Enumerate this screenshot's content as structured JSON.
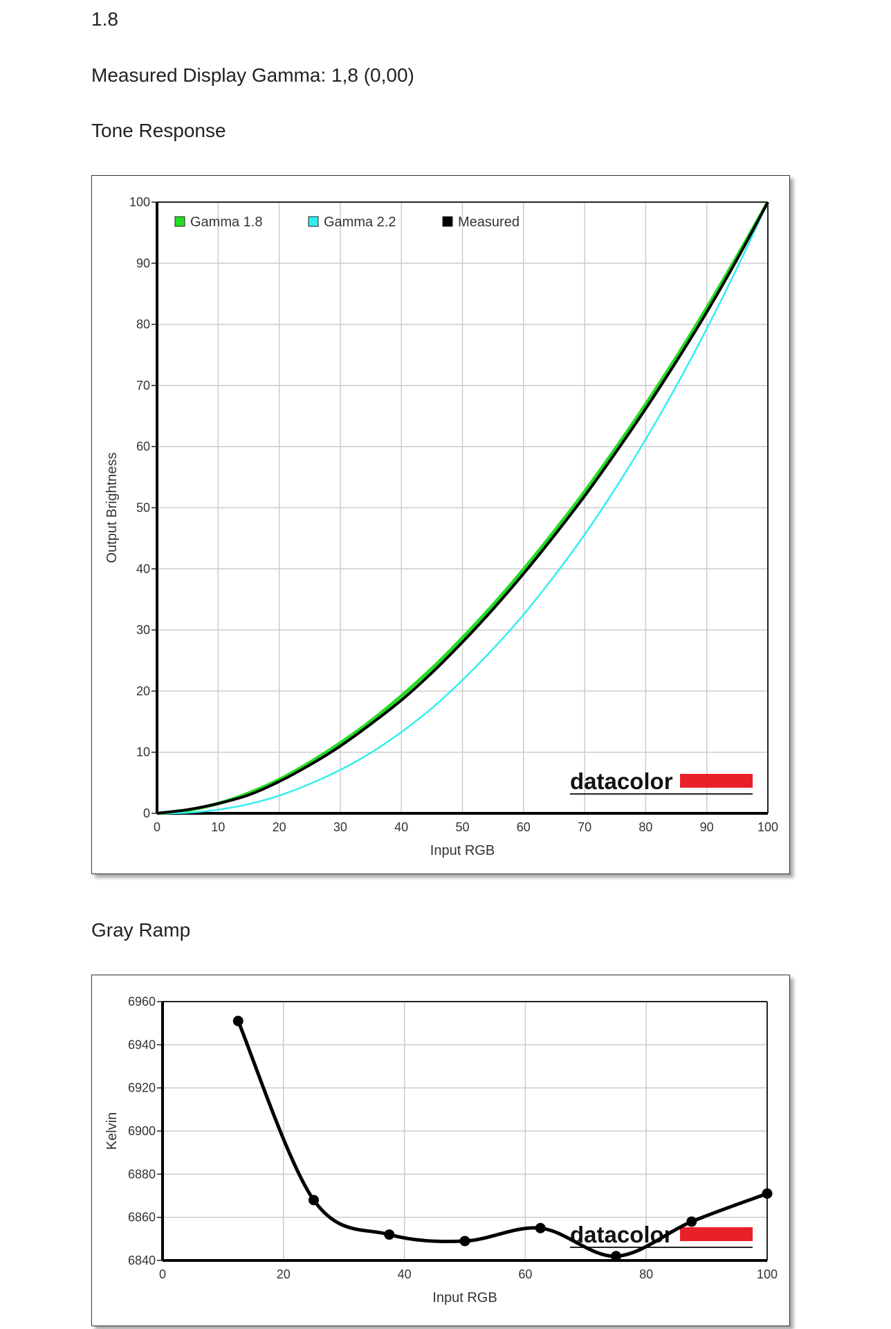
{
  "header": {
    "gamma_target": "1.8",
    "measured_gamma": "Measured Display Gamma: 1,8 (0,00)",
    "tone_heading": "Tone Response",
    "gray_heading": "Gray Ramp"
  },
  "logo_text": "datacolor",
  "colors": {
    "gamma18": "#22dd22",
    "gamma22": "#33eeee",
    "measured": "#000000",
    "logo_red": "#e8202a"
  },
  "chart_data": [
    {
      "type": "line",
      "xlabel": "Input RGB",
      "ylabel": "Output Brightness",
      "xlim": [
        0,
        100
      ],
      "ylim": [
        0,
        100
      ],
      "xticks": [
        0,
        10,
        20,
        30,
        40,
        50,
        60,
        70,
        80,
        90,
        100
      ],
      "yticks": [
        0,
        10,
        20,
        30,
        40,
        50,
        60,
        70,
        80,
        90,
        100
      ],
      "grid": true,
      "legend": "top-left",
      "series": [
        {
          "name": "Gamma 1.8",
          "color": "#22dd22",
          "x": [
            0,
            5,
            10,
            15,
            20,
            25,
            30,
            35,
            40,
            45,
            50,
            55,
            60,
            65,
            70,
            75,
            80,
            85,
            90,
            95,
            100
          ],
          "y": [
            0,
            0.5,
            1.6,
            3.3,
            5.5,
            8.3,
            11.5,
            15.1,
            19.2,
            23.7,
            28.7,
            34.1,
            39.9,
            46.1,
            52.6,
            59.6,
            66.9,
            74.6,
            82.7,
            91.2,
            100
          ]
        },
        {
          "name": "Gamma 2.2",
          "color": "#33eeee",
          "x": [
            0,
            5,
            10,
            15,
            20,
            25,
            30,
            35,
            40,
            45,
            50,
            55,
            60,
            65,
            70,
            75,
            80,
            85,
            90,
            95,
            100
          ],
          "y": [
            0,
            0.1,
            0.6,
            1.5,
            2.9,
            4.8,
            7.1,
            9.9,
            13.3,
            17.2,
            21.8,
            26.9,
            32.5,
            38.8,
            45.6,
            53.1,
            61.2,
            69.9,
            79.3,
            89.3,
            100
          ]
        },
        {
          "name": "Measured",
          "color": "#000000",
          "x": [
            0,
            5,
            10,
            15,
            20,
            25,
            30,
            35,
            40,
            45,
            50,
            55,
            60,
            65,
            70,
            75,
            80,
            85,
            90,
            95,
            100
          ],
          "y": [
            0,
            0.6,
            1.6,
            3.0,
            5.2,
            7.9,
            11.0,
            14.6,
            18.5,
            23.0,
            28.0,
            33.4,
            39.2,
            45.4,
            51.9,
            58.9,
            66.2,
            73.9,
            82.0,
            90.7,
            100
          ]
        }
      ]
    },
    {
      "type": "line",
      "xlabel": "Input RGB",
      "ylabel": "Kelvin",
      "xlim": [
        0,
        100
      ],
      "ylim": [
        6840,
        6960
      ],
      "xticks": [
        0,
        20,
        40,
        60,
        80,
        100
      ],
      "yticks": [
        6840,
        6860,
        6880,
        6900,
        6920,
        6940,
        6960
      ],
      "grid": true,
      "series": [
        {
          "color": "#000000",
          "x": [
            12.5,
            25,
            37.5,
            50,
            62.5,
            75,
            87.5,
            100
          ],
          "y": [
            6951,
            6868,
            6852,
            6849,
            6855,
            6842,
            6858,
            6871
          ]
        }
      ]
    }
  ]
}
